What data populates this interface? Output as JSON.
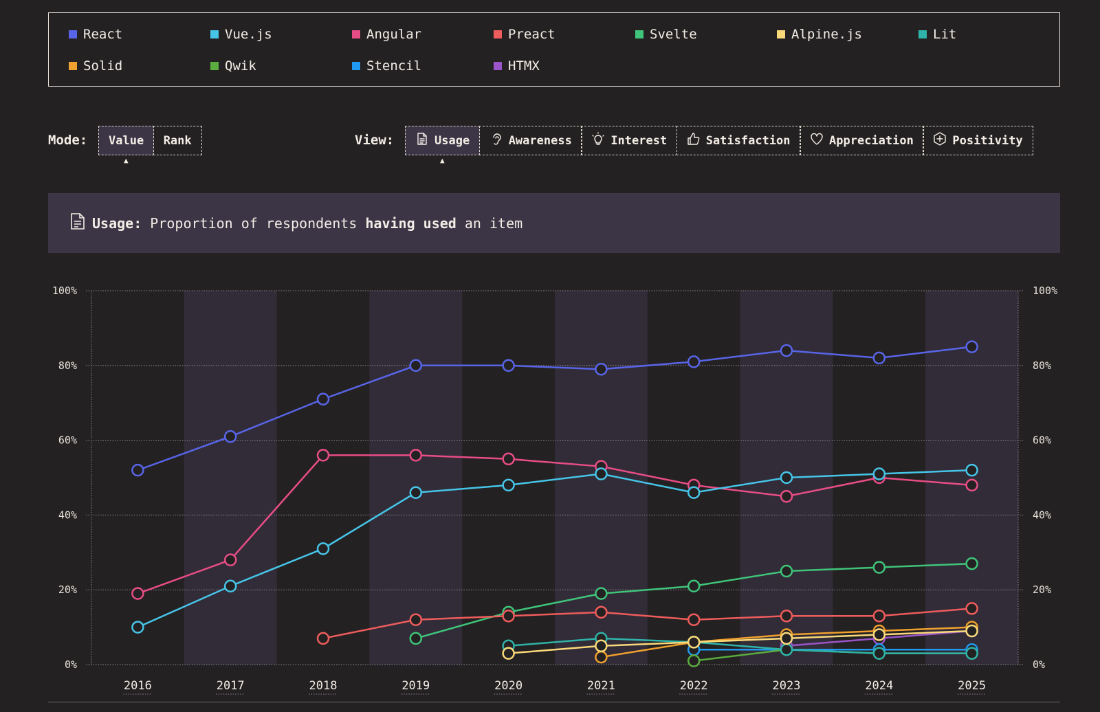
{
  "legend": [
    {
      "name": "React",
      "color": "#5865e8"
    },
    {
      "name": "Vue.js",
      "color": "#46c5e8"
    },
    {
      "name": "Angular",
      "color": "#e84d86"
    },
    {
      "name": "Preact",
      "color": "#ef5c5c"
    },
    {
      "name": "Svelte",
      "color": "#3fc57a"
    },
    {
      "name": "Alpine.js",
      "color": "#fad97a"
    },
    {
      "name": "Lit",
      "color": "#2fb3a8"
    },
    {
      "name": "Solid",
      "color": "#f0a02e"
    },
    {
      "name": "Qwik",
      "color": "#5aad3e"
    },
    {
      "name": "Stencil",
      "color": "#1f9af0"
    },
    {
      "name": "HTMX",
      "color": "#9b54c9"
    }
  ],
  "mode": {
    "label": "Mode:",
    "options": [
      "Value",
      "Rank"
    ],
    "selected": "Value"
  },
  "view": {
    "label": "View:",
    "options": [
      {
        "label": "Usage",
        "icon": "document-icon"
      },
      {
        "label": "Awareness",
        "icon": "ear-icon"
      },
      {
        "label": "Interest",
        "icon": "lightbulb-icon"
      },
      {
        "label": "Satisfaction",
        "icon": "thumbs-up-icon"
      },
      {
        "label": "Appreciation",
        "icon": "heart-icon"
      },
      {
        "label": "Positivity",
        "icon": "plus-hexagon-icon"
      }
    ],
    "selected": "Usage"
  },
  "banner": {
    "icon": "document-icon",
    "term": "Usage:",
    "text_before": "Proportion of respondents ",
    "text_bold": "having used",
    "text_after": " an item"
  },
  "chart_data": {
    "type": "line",
    "x": [
      "2016",
      "2017",
      "2018",
      "2019",
      "2020",
      "2021",
      "2022",
      "2023",
      "2024",
      "2025"
    ],
    "ylim": [
      0,
      100
    ],
    "yticks": [
      "0%",
      "20%",
      "40%",
      "60%",
      "80%",
      "100%"
    ],
    "grid": true,
    "series": [
      {
        "name": "React",
        "color": "#5865e8",
        "values": [
          52,
          61,
          71,
          80,
          80,
          79,
          81,
          84,
          82,
          85
        ]
      },
      {
        "name": "Vue.js",
        "color": "#46c5e8",
        "values": [
          10,
          21,
          31,
          46,
          48,
          51,
          46,
          50,
          51,
          52
        ]
      },
      {
        "name": "Angular",
        "color": "#e84d86",
        "values": [
          19,
          28,
          56,
          56,
          55,
          53,
          48,
          45,
          50,
          48
        ]
      },
      {
        "name": "Preact",
        "color": "#ef5c5c",
        "values": [
          null,
          null,
          7,
          12,
          13,
          14,
          12,
          13,
          13,
          15
        ]
      },
      {
        "name": "Svelte",
        "color": "#3fc57a",
        "values": [
          null,
          null,
          null,
          7,
          14,
          19,
          21,
          25,
          26,
          27
        ]
      },
      {
        "name": "Alpine.js",
        "color": "#fad97a",
        "values": [
          null,
          null,
          null,
          null,
          3,
          5,
          6,
          7,
          8,
          9
        ]
      },
      {
        "name": "Lit",
        "color": "#2fb3a8",
        "values": [
          null,
          null,
          null,
          null,
          5,
          7,
          6,
          4,
          3,
          3
        ]
      },
      {
        "name": "Solid",
        "color": "#f0a02e",
        "values": [
          null,
          null,
          null,
          null,
          null,
          2,
          6,
          8,
          9,
          10
        ]
      },
      {
        "name": "Qwik",
        "color": "#5aad3e",
        "values": [
          null,
          null,
          null,
          null,
          null,
          null,
          1,
          4,
          3,
          3
        ]
      },
      {
        "name": "Stencil",
        "color": "#1f9af0",
        "values": [
          null,
          null,
          null,
          null,
          null,
          null,
          4,
          4,
          4,
          4
        ]
      },
      {
        "name": "HTMX",
        "color": "#9b54c9",
        "values": [
          null,
          null,
          null,
          null,
          null,
          null,
          null,
          5,
          7,
          9
        ]
      }
    ]
  }
}
